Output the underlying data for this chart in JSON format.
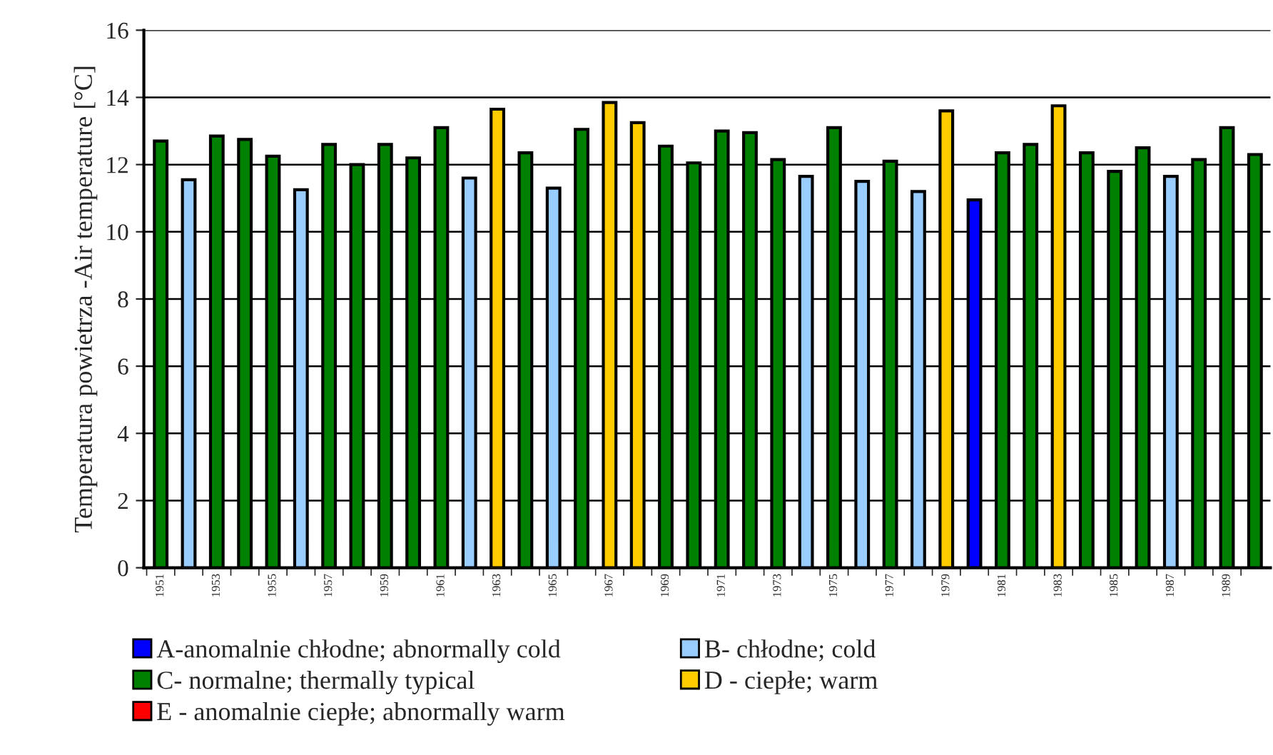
{
  "chart_data": {
    "type": "bar",
    "ylabel": "Temperatura powietrza -Air temperature [°C]",
    "categories": [
      "1951",
      null,
      "1953",
      null,
      "1955",
      null,
      "1957",
      null,
      "1959",
      null,
      "1961",
      null,
      "1963",
      null,
      "1965",
      null,
      "1967",
      null,
      "1969",
      null,
      "1971",
      null,
      "1973",
      null,
      "1975",
      null,
      "1977",
      null,
      "1979",
      null,
      "1981",
      null,
      "1983",
      null,
      "1985",
      null,
      "1987",
      null,
      "1989",
      null
    ],
    "series": [
      {
        "name": "A-anomalnie chłodne; abnormally cold",
        "color": "#0000ff",
        "values": [
          null,
          null,
          null,
          null,
          null,
          null,
          null,
          null,
          null,
          null,
          null,
          null,
          null,
          null,
          null,
          null,
          null,
          null,
          null,
          null,
          null,
          null,
          null,
          null,
          null,
          null,
          null,
          null,
          null,
          10.95,
          null,
          null,
          null,
          null,
          null,
          null,
          null,
          null,
          null,
          null
        ]
      },
      {
        "name": "B- chłodne; cold",
        "color": "#99ccff",
        "values": [
          null,
          11.55,
          null,
          null,
          null,
          11.25,
          null,
          null,
          null,
          null,
          null,
          11.6,
          null,
          null,
          11.3,
          null,
          null,
          null,
          null,
          null,
          null,
          null,
          null,
          11.65,
          null,
          11.5,
          null,
          11.2,
          null,
          null,
          null,
          null,
          null,
          null,
          null,
          null,
          11.65,
          null,
          null,
          null
        ]
      },
      {
        "name": "C- normalne; thermally typical",
        "color": "#008000",
        "values": [
          12.7,
          null,
          12.85,
          12.75,
          12.25,
          null,
          12.6,
          12.0,
          12.6,
          12.2,
          13.1,
          null,
          null,
          12.35,
          null,
          13.05,
          null,
          null,
          12.55,
          12.05,
          13.0,
          12.95,
          12.15,
          null,
          13.1,
          null,
          12.1,
          null,
          null,
          null,
          12.35,
          12.6,
          null,
          12.35,
          11.8,
          12.5,
          null,
          12.15,
          13.1,
          12.3
        ]
      },
      {
        "name": "D - ciepłe; warm",
        "color": "#ffcc00",
        "values": [
          null,
          null,
          null,
          null,
          null,
          null,
          null,
          null,
          null,
          null,
          null,
          null,
          13.65,
          null,
          null,
          null,
          13.85,
          13.25,
          null,
          null,
          null,
          null,
          null,
          null,
          null,
          null,
          null,
          null,
          13.6,
          null,
          null,
          null,
          13.75,
          null,
          null,
          null,
          null,
          null,
          null,
          null
        ]
      },
      {
        "name": "E - anomalnie ciepłe; abnormally warm",
        "color": "#ff0000",
        "values": [
          null,
          null,
          null,
          null,
          null,
          null,
          null,
          null,
          null,
          null,
          null,
          null,
          null,
          null,
          null,
          null,
          null,
          null,
          null,
          null,
          null,
          null,
          null,
          null,
          null,
          null,
          null,
          null,
          null,
          null,
          null,
          null,
          null,
          null,
          null,
          null,
          null,
          null,
          null,
          null
        ]
      }
    ],
    "ylim": [
      0,
      16
    ],
    "yticks": [
      0,
      2,
      4,
      6,
      8,
      10,
      12,
      14,
      16
    ],
    "grid": "y",
    "legend": "bottom"
  }
}
